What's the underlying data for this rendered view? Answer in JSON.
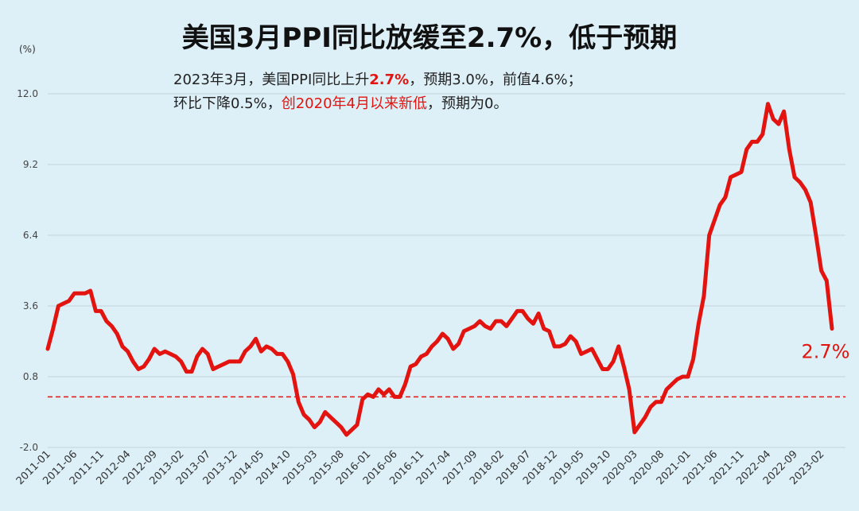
{
  "title": "美国3月PPI同比放缓至2.7%，低于预期",
  "unit": "(%)",
  "subtitle": {
    "line1": {
      "a": "2023年3月，美国PPI同比上升",
      "b": "2.7%",
      "c": "，预期3.0%，前值4.6%；"
    },
    "line2": {
      "a": "环比下降0.5%，",
      "b": "创2020年4月以来新低",
      "c": "，预期为0。"
    }
  },
  "colors": {
    "line": "#e3140f",
    "background": "#ddeff7",
    "grid": "#c2d3dc",
    "reference": "#e3140f"
  },
  "chart_data": {
    "type": "line",
    "title": "美国3月PPI同比放缓至2.7%，低于预期",
    "ylabel": "(%)",
    "ylim": [
      -2.0,
      12.0
    ],
    "yticks": [
      "12.0",
      "9.2",
      "6.4",
      "3.6",
      "0.8",
      "-2.0"
    ],
    "grid": true,
    "reference_line": 0,
    "end_label": "2.7%",
    "x_tick_labels": [
      "2011-01",
      "2011-06",
      "2011-11",
      "2012-04",
      "2012-09",
      "2013-02",
      "2013-07",
      "2013-12",
      "2014-05",
      "2014-10",
      "2015-03",
      "2015-08",
      "2016-01",
      "2016-06",
      "2016-11",
      "2017-04",
      "2017-09",
      "2018-02",
      "2018-07",
      "2018-12",
      "2019-05",
      "2019-10",
      "2020-03",
      "2020-08",
      "2021-01",
      "2021-06",
      "2021-11",
      "2022-04",
      "2022-09",
      "2023-02"
    ],
    "x_start": "2011-01",
    "x_end": "2023-03",
    "values": [
      1.9,
      2.7,
      3.6,
      3.7,
      3.8,
      4.1,
      4.1,
      4.1,
      4.2,
      3.4,
      3.4,
      3.0,
      2.8,
      2.5,
      2.0,
      1.8,
      1.4,
      1.1,
      1.2,
      1.5,
      1.9,
      1.7,
      1.8,
      1.7,
      1.6,
      1.4,
      1.0,
      1.0,
      1.6,
      1.9,
      1.7,
      1.1,
      1.2,
      1.3,
      1.4,
      1.4,
      1.4,
      1.8,
      2.0,
      2.3,
      1.8,
      2.0,
      1.9,
      1.7,
      1.7,
      1.4,
      0.9,
      -0.2,
      -0.7,
      -0.9,
      -1.2,
      -1.0,
      -0.6,
      -0.8,
      -1.0,
      -1.2,
      -1.5,
      -1.3,
      -1.1,
      -0.1,
      0.1,
      0.0,
      0.3,
      0.1,
      0.3,
      0.0,
      0.0,
      0.5,
      1.2,
      1.3,
      1.6,
      1.7,
      2.0,
      2.2,
      2.5,
      2.3,
      1.9,
      2.1,
      2.6,
      2.7,
      2.8,
      3.0,
      2.8,
      2.7,
      3.0,
      3.0,
      2.8,
      3.1,
      3.4,
      3.4,
      3.1,
      2.9,
      3.3,
      2.7,
      2.6,
      2.0,
      2.0,
      2.1,
      2.4,
      2.2,
      1.7,
      1.8,
      1.9,
      1.5,
      1.1,
      1.1,
      1.4,
      2.0,
      1.2,
      0.3,
      -1.4,
      -1.1,
      -0.8,
      -0.4,
      -0.2,
      -0.2,
      0.3,
      0.5,
      0.7,
      0.8,
      0.8,
      1.5,
      2.9,
      4.0,
      6.4,
      7.0,
      7.6,
      7.9,
      8.7,
      8.8,
      8.9,
      9.8,
      10.1,
      10.1,
      10.4,
      11.6,
      11.0,
      10.8,
      11.3,
      9.8,
      8.7,
      8.5,
      8.2,
      7.7,
      6.4,
      5.0,
      4.6,
      2.7
    ]
  }
}
